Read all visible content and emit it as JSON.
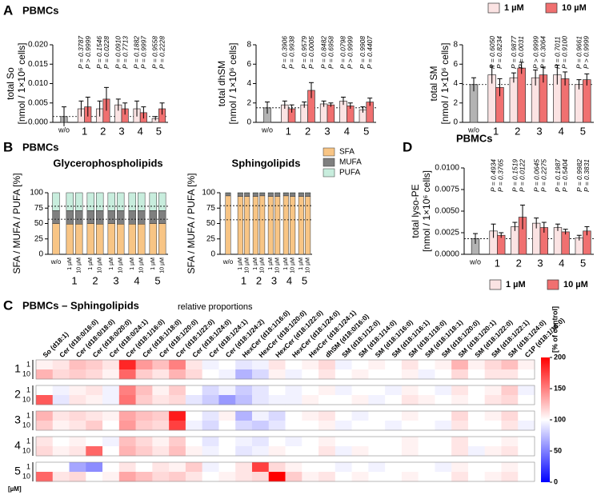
{
  "panel_labels": [
    {
      "letter": "A",
      "title": "PBMCs"
    },
    {
      "letter": "B",
      "title": "PBMCs"
    },
    {
      "letter": "C"
    },
    {
      "letter": "D"
    }
  ],
  "chart_data": [
    {
      "type": "bar",
      "ylabel": [
        "total So",
        "[nmol / 1×10⁶ cells]"
      ],
      "ylim": [
        0,
        0.02
      ],
      "yticks": [
        {
          "value": 0,
          "label": "0.000"
        },
        {
          "value": 0.005,
          "label": "0.005"
        },
        {
          "value": 0.01,
          "label": "0.010"
        },
        {
          "value": 0.015,
          "label": "0.015"
        },
        {
          "value": 0.02,
          "label": "0.020"
        }
      ],
      "control": {
        "label": "w/o",
        "value": 0.0015,
        "error": 0.0025,
        "color": "#b3b3b3"
      },
      "categories": [
        "1",
        "2",
        "3",
        "4",
        "5"
      ],
      "series": [
        {
          "color": "#fbe3e3",
          "values": [
            0.0035,
            0.0035,
            0.0045,
            0.0035,
            0.001
          ],
          "errors": [
            0.002,
            0.002,
            0.0015,
            0.002,
            0.0005
          ]
        },
        {
          "color": "#f07070",
          "values": [
            0.004,
            0.006,
            0.0035,
            0.0025,
            0.0035
          ],
          "errors": [
            0.0025,
            0.003,
            0.0015,
            0.0015,
            0.0015
          ]
        }
      ],
      "annotations": [
        [
          "P = 0.3787",
          "P > 0.9999"
        ],
        [
          "P = 0.1546",
          "P = 0.0228"
        ],
        [
          "P = 0.0910",
          "P = 0.7713"
        ],
        [
          "P = 0.1882",
          "P = 0.9997"
        ],
        [
          "P = 0.9558",
          "P = 0.2228"
        ]
      ],
      "reference_line": true
    },
    {
      "type": "bar",
      "ylabel": [
        "total dhSM",
        "[nmol / 1×10⁶ cells]"
      ],
      "ylim": [
        0,
        8
      ],
      "yticks": [
        0,
        2,
        4,
        6,
        8
      ],
      "control": {
        "label": "w/o",
        "value": 1.5,
        "error": 0.6,
        "color": "#b3b3b3"
      },
      "categories": [
        "1",
        "2",
        "3",
        "4",
        "5"
      ],
      "series": [
        {
          "color": "#fbe3e3",
          "values": [
            1.8,
            1.8,
            1.9,
            2.2,
            1.3
          ],
          "errors": [
            0.4,
            0.3,
            0.3,
            0.4,
            0.3
          ]
        },
        {
          "color": "#f07070",
          "values": [
            1.4,
            3.3,
            1.8,
            1.7,
            2.1
          ],
          "errors": [
            0.4,
            0.8,
            0.2,
            0.3,
            0.4
          ]
        }
      ],
      "annotations": [
        [
          "P = 0.3906",
          "P = 0.9938"
        ],
        [
          "P = 0.9579",
          "P = 0.0005"
        ],
        [
          "P = 0.8482",
          "P = 0.6958"
        ],
        [
          "P = 0.0798",
          "P > 0.9999"
        ],
        [
          "P = 0.9908",
          "P = 0.4407"
        ]
      ],
      "reference_line": true
    },
    {
      "type": "bar",
      "ylabel": [
        "total SM",
        "[nmol / 1×10⁶ cells]"
      ],
      "ylim": [
        0,
        8
      ],
      "yticks": [
        0,
        2,
        4,
        6,
        8
      ],
      "control": {
        "label": "w/o",
        "value": 3.9,
        "error": 0.7,
        "color": "#b3b3b3"
      },
      "categories": [
        "1",
        "2",
        "3",
        "4",
        "5"
      ],
      "series": [
        {
          "name": "1 µM",
          "color": "#fbe3e3",
          "values": [
            4.9,
            4.6,
            4.6,
            4.9,
            3.9
          ],
          "errors": [
            0.9,
            0.5,
            0.8,
            1.0,
            0.5
          ]
        },
        {
          "name": "10 µM",
          "color": "#f07070",
          "values": [
            3.6,
            5.6,
            4.9,
            4.5,
            4.4
          ],
          "errors": [
            0.9,
            0.6,
            0.8,
            0.7,
            0.6
          ]
        }
      ],
      "annotations": [
        [
          "P = 0.6050",
          "P = 0.8234"
        ],
        [
          "P = 0.9877",
          "P = 0.0031"
        ],
        [
          "P > 0.9999",
          "P = 0.3064"
        ],
        [
          "P = 0.7011",
          "P = 0.9100"
        ],
        [
          "P = 0.9661",
          "P > 0.9999"
        ]
      ],
      "reference_line": true,
      "legend": "top"
    },
    {
      "type": "stacked_bar",
      "title": "Glycerophospholipids",
      "ylabel": [
        "SFA / MUFA / PUFA [%]"
      ],
      "ylim": [
        0,
        100
      ],
      "yticks": [
        0,
        25,
        50,
        75,
        100
      ],
      "categories": [
        "w/o",
        "1 µM",
        "10 µM",
        "1 µM",
        "10 µM",
        "1 µM",
        "10 µM",
        "1 µM",
        "10 µM",
        "1 µM",
        "10 µM"
      ],
      "groups": [
        "1",
        "2",
        "3",
        "4",
        "5"
      ],
      "series": [
        {
          "color": "#f8c585",
          "values": [
            50,
            49,
            49,
            50,
            49,
            50,
            49,
            49,
            49,
            50,
            50
          ]
        },
        {
          "color": "#7f7f7f",
          "values": [
            21,
            22,
            22,
            21,
            22,
            21,
            22,
            22,
            22,
            21,
            21
          ]
        },
        {
          "color": "#c8eddd",
          "values": [
            29,
            29,
            29,
            29,
            29,
            29,
            29,
            29,
            29,
            29,
            29
          ]
        }
      ],
      "reference_lines": [
        57,
        78
      ]
    },
    {
      "type": "stacked_bar",
      "title": "Sphingolipids",
      "ylabel": [
        "SFA / MUFA / PUFA [%]"
      ],
      "ylim": [
        0,
        100
      ],
      "yticks": [
        0,
        25,
        50,
        75,
        100
      ],
      "categories": [
        "w/o",
        "1 µM",
        "10 µM",
        "1 µM",
        "10 µM",
        "1 µM",
        "10 µM",
        "1 µM",
        "10 µM",
        "1 µM",
        "10 µM"
      ],
      "groups": [
        "1",
        "2",
        "3",
        "4",
        "5"
      ],
      "series": [
        {
          "name": "SFA",
          "color": "#f8c585",
          "values": [
            95,
            94,
            94,
            94,
            95,
            94,
            94,
            95,
            94,
            94,
            94
          ]
        },
        {
          "name": "MUFA",
          "color": "#7f7f7f",
          "values": [
            4,
            5,
            5,
            5,
            4,
            5,
            5,
            4,
            5,
            5,
            5
          ]
        },
        {
          "name": "PUFA",
          "color": "#c8eddd",
          "values": [
            1,
            1,
            1,
            1,
            1,
            1,
            1,
            1,
            1,
            1,
            1
          ]
        }
      ],
      "reference_lines": [
        56,
        79
      ],
      "legend": "right"
    },
    {
      "type": "bar",
      "title": "PBMCs",
      "ylabel": [
        "total lyso-PE",
        "[nmol / 1×10⁶ cells]"
      ],
      "ylim": [
        0,
        0.01
      ],
      "yticks": [
        {
          "value": 0,
          "label": "0.0000"
        },
        {
          "value": 0.0025,
          "label": "0.0025"
        },
        {
          "value": 0.005,
          "label": "0.0050"
        },
        {
          "value": 0.0075,
          "label": "0.0075"
        },
        {
          "value": 0.01,
          "label": "0.0100"
        }
      ],
      "control": {
        "label": "w/o",
        "value": 0.0018,
        "error": 0.0006,
        "color": "#b3b3b3"
      },
      "categories": [
        "1",
        "2",
        "3",
        "4",
        "5"
      ],
      "series": [
        {
          "name": "1 µM",
          "color": "#fbe3e3",
          "values": [
            0.0027,
            0.0032,
            0.0036,
            0.0031,
            0.0019
          ],
          "errors": [
            0.0008,
            0.0005,
            0.0006,
            0.0004,
            0.0003
          ]
        },
        {
          "name": "10 µM",
          "color": "#f07070",
          "values": [
            0.0022,
            0.0043,
            0.0031,
            0.0026,
            0.0027
          ],
          "errors": [
            0.0003,
            0.0014,
            0.0006,
            0.0003,
            0.0005
          ]
        }
      ],
      "annotations": [
        [
          "P = 0.4934",
          "P = 0.3765"
        ],
        [
          "P = 0.1519",
          "P = 0.0122"
        ],
        [
          "P = 0.0645",
          "P = 0.2275"
        ],
        [
          "P = 0.1987",
          "P = 0.5404"
        ],
        [
          "P = 0.9982",
          "P = 0.3831"
        ]
      ],
      "reference_line": true,
      "legend": "bottom"
    },
    {
      "type": "heatmap",
      "title": "PBMCs – Sphingolipids",
      "subtitle": "relative proportions",
      "columns": [
        "So (d18:1)",
        "Cer (d18:0/16:0)",
        "Cer (d18:0/18:0)",
        "Cer (d18:0/20:0)",
        "Cer (d18:0/24:1)",
        "Cer (d18:1/16:0)",
        "Cer (d18:1/18:0)",
        "Cer (d18:1/20:0)",
        "Cer (d18:1/22:0)",
        "Cer (d18:1/24:0)",
        "Cer (d18:1/24:1)",
        "Cer (d18:1/24:2)",
        "HexCer (d18:1/16:0)",
        "HexCer (d18:1/20:0)",
        "HexCer (d18:1/22:0)",
        "HexCer (d18:1/24:0)",
        "HexCer (d18:1/24:1)",
        "dhSM (d18:0/16:0)",
        "SM (d18:1/12:0)",
        "SM (d18:1/14:0)",
        "SM (d18:1/16:0)",
        "SM (d18:1/16:1)",
        "SM (d18:1/18:0)",
        "SM (d18:1/18:1)",
        "SM (d18:1/20:0)",
        "SM (d18:1/20:1)",
        "SM (d18:1/22:0)",
        "SM (d18:1/22:1)",
        "SM (d18:1/24:0)",
        "C1P (d18:1/16:0)"
      ],
      "groups": [
        "1",
        "2",
        "3",
        "4",
        "5"
      ],
      "concentrations": [
        "1",
        "10"
      ],
      "unit_label": "[µM]",
      "values": [
        [
          105,
          110,
          125,
          120,
          110,
          185,
          140,
          125,
          150,
          110,
          95,
          100,
          90,
          95,
          110,
          100,
          105,
          115,
          95,
          100,
          105,
          100,
          110,
          100,
          105,
          130,
          105,
          115,
          125,
          105
        ],
        [
          130,
          115,
          120,
          115,
          105,
          160,
          120,
          110,
          130,
          115,
          100,
          95,
          70,
          85,
          105,
          95,
          100,
          110,
          100,
          105,
          100,
          100,
          105,
          95,
          100,
          115,
          100,
          110,
          110,
          100
        ],
        [
          100,
          95,
          105,
          110,
          95,
          150,
          125,
          105,
          120,
          100,
          85,
          95,
          80,
          90,
          100,
          95,
          100,
          105,
          95,
          100,
          100,
          95,
          105,
          100,
          95,
          110,
          100,
          105,
          120,
          95
        ],
        [
          165,
          90,
          110,
          105,
          95,
          155,
          120,
          110,
          115,
          90,
          80,
          60,
          75,
          90,
          95,
          95,
          105,
          100,
          100,
          105,
          95,
          100,
          110,
          105,
          100,
          105,
          100,
          110,
          115,
          100
        ],
        [
          130,
          110,
          115,
          110,
          105,
          135,
          125,
          120,
          190,
          100,
          90,
          105,
          70,
          95,
          85,
          100,
          105,
          110,
          100,
          95,
          100,
          100,
          105,
          100,
          100,
          115,
          100,
          105,
          115,
          100
        ],
        [
          120,
          105,
          110,
          120,
          100,
          140,
          120,
          115,
          175,
          95,
          85,
          100,
          85,
          80,
          90,
          100,
          100,
          105,
          95,
          100,
          100,
          95,
          100,
          100,
          95,
          110,
          100,
          100,
          110,
          95
        ],
        [
          110,
          100,
          105,
          100,
          95,
          125,
          115,
          105,
          120,
          100,
          90,
          100,
          95,
          90,
          100,
          95,
          100,
          105,
          100,
          100,
          100,
          100,
          105,
          100,
          100,
          110,
          100,
          100,
          105,
          100
        ],
        [
          115,
          105,
          110,
          160,
          100,
          130,
          120,
          110,
          125,
          105,
          95,
          100,
          90,
          95,
          105,
          100,
          100,
          110,
          95,
          105,
          100,
          100,
          105,
          100,
          100,
          110,
          95,
          105,
          110,
          100
        ],
        [
          100,
          100,
          65,
          55,
          100,
          110,
          100,
          110,
          105,
          120,
          95,
          100,
          110,
          175,
          115,
          105,
          100,
          100,
          95,
          100,
          95,
          100,
          100,
          100,
          95,
          105,
          100,
          100,
          105,
          100
        ],
        [
          160,
          110,
          115,
          100,
          105,
          135,
          125,
          115,
          120,
          110,
          100,
          105,
          110,
          115,
          200,
          120,
          105,
          110,
          100,
          105,
          100,
          100,
          105,
          100,
          100,
          110,
          100,
          105,
          110,
          100
        ]
      ],
      "colorscale": [
        "#0000ff",
        "#ffffff",
        "#ff0000"
      ],
      "zlim": [
        0,
        200
      ],
      "zticks": [
        0,
        50,
        100,
        150,
        200
      ],
      "colorbar_label": "[% of control]"
    }
  ]
}
